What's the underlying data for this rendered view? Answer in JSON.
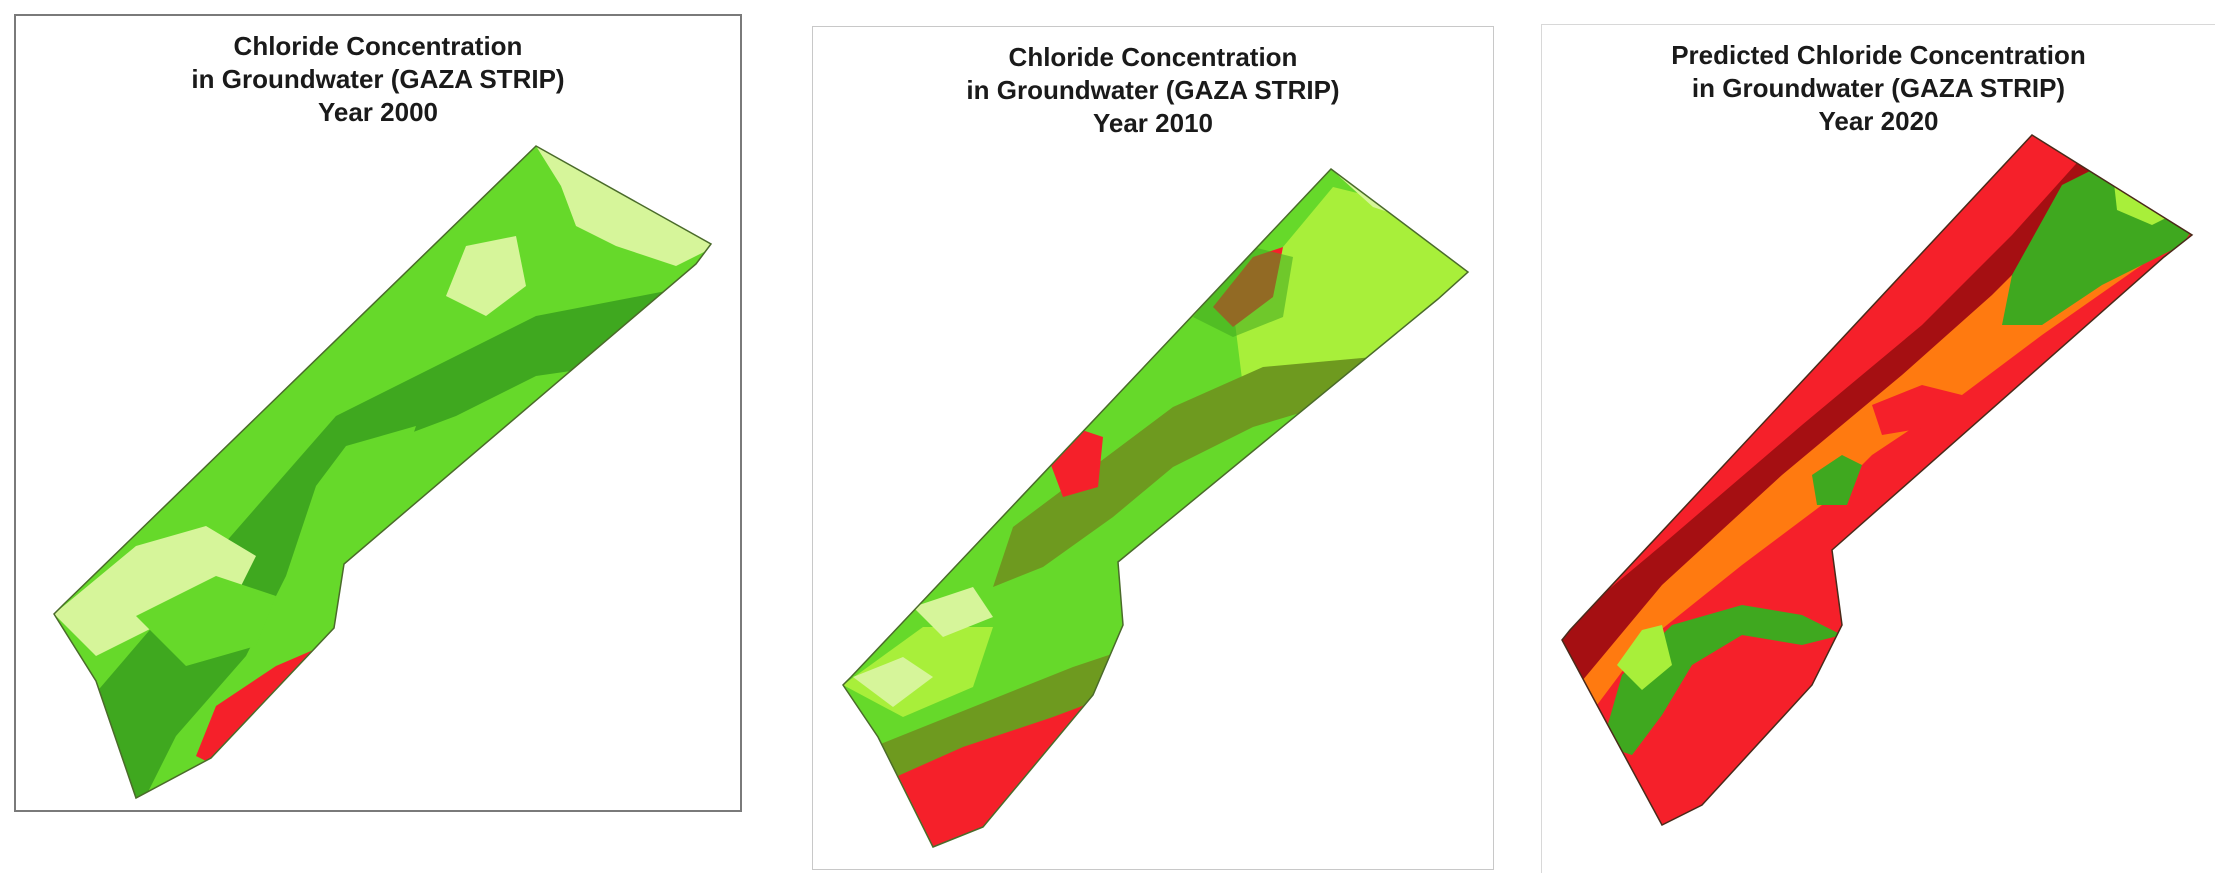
{
  "maps": [
    {
      "title_lines": [
        "Chloride Concentration",
        "in Groundwater (GAZA STRIP)",
        "Year 2000"
      ],
      "year": "2000"
    },
    {
      "title_lines": [
        "Chloride Concentration",
        "in Groundwater (GAZA STRIP)",
        "Year 2010"
      ],
      "year": "2010"
    },
    {
      "title_lines": [
        "Predicted Chloride Concentration",
        "in Groundwater (GAZA STRIP)",
        "Year 2020"
      ],
      "year": "2020"
    }
  ],
  "zone_colors": {
    "very_low": "#d6f59a",
    "low": "#a8ef3a",
    "medium_low": "#66d92a",
    "medium": "#3fa81f",
    "medium_dark": "#6e9a1f",
    "high": "#f5202a",
    "higher": "#ff7a10",
    "very_high": "#a50f12"
  }
}
